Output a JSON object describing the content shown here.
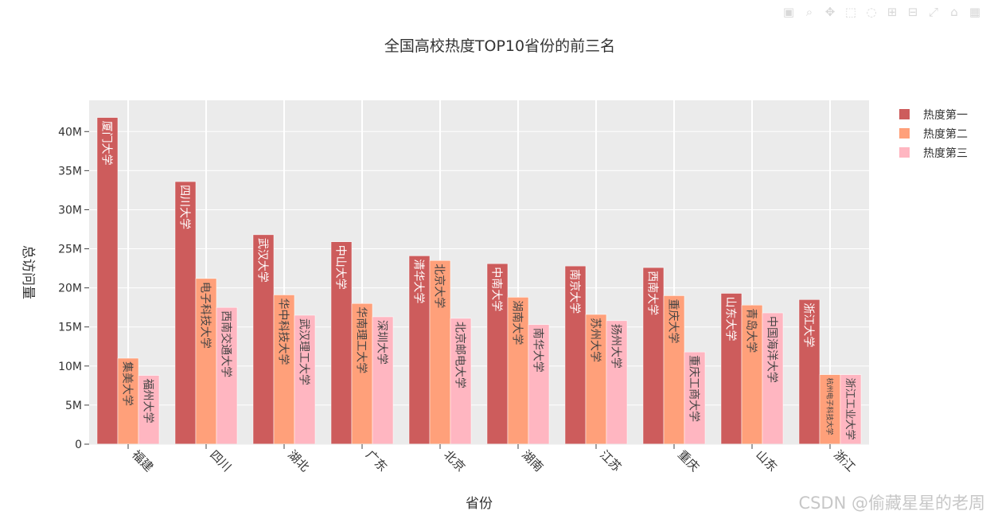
{
  "chart_data": {
    "type": "bar",
    "title": "全国高校热度TOP10省份的前三名",
    "xlabel": "省份",
    "ylabel": "总访问量",
    "categories": [
      "福建",
      "四川",
      "湖北",
      "广东",
      "北京",
      "湖南",
      "江苏",
      "重庆",
      "山东",
      "浙江"
    ],
    "ylim": [
      0,
      44000000
    ],
    "yticks": [
      0,
      5000000,
      10000000,
      15000000,
      20000000,
      25000000,
      30000000,
      35000000,
      40000000
    ],
    "ytick_labels": [
      "0",
      "5M",
      "10M",
      "15M",
      "20M",
      "25M",
      "30M",
      "35M",
      "40M"
    ],
    "grid": true,
    "legend_position": "top-right",
    "series": [
      {
        "name": "热度第一",
        "color": "#cd5c5c",
        "values": [
          41800000,
          33600000,
          26800000,
          25900000,
          24100000,
          23100000,
          22800000,
          22600000,
          19300000,
          18500000
        ],
        "labels": [
          "厦门大学",
          "四川大学",
          "武汉大学",
          "中山大学",
          "清华大学",
          "中南大学",
          "南京大学",
          "西南大学",
          "山东大学",
          "浙江大学"
        ]
      },
      {
        "name": "热度第二",
        "color": "#ffa07a",
        "values": [
          11000000,
          21200000,
          19100000,
          18000000,
          23500000,
          18800000,
          16600000,
          19000000,
          17800000,
          8900000
        ],
        "labels": [
          "集美大学",
          "电子科技大学",
          "华中科技大学",
          "华南理工大学",
          "北京大学",
          "湖南大学",
          "苏州大学",
          "重庆大学",
          "青岛大学",
          "杭州电子科技大学"
        ]
      },
      {
        "name": "热度第三",
        "color": "#ffb6c1",
        "values": [
          8800000,
          17500000,
          16500000,
          16300000,
          16100000,
          15300000,
          15800000,
          11800000,
          16800000,
          8900000
        ],
        "labels": [
          "福州大学",
          "西南交通大学",
          "武汉理工大学",
          "深圳大学",
          "北京邮电大学",
          "南华大学",
          "扬州大学",
          "重庆工商大学",
          "中国海洋大学",
          "浙江工业大学"
        ]
      }
    ]
  },
  "watermark": "CSDN @偷藏星星的老周",
  "modebar": {
    "icons": [
      "camera-icon",
      "zoom-icon",
      "pan-icon",
      "select-icon",
      "lasso-icon",
      "zoom-in-icon",
      "zoom-out-icon",
      "autoscale-icon",
      "reset-icon",
      "plotly-logo-icon"
    ],
    "glyphs": [
      "▣",
      "⌕",
      "✥",
      "⬚",
      "◌",
      "⊞",
      "⊟",
      "⤢",
      "⌂",
      "▦"
    ]
  }
}
